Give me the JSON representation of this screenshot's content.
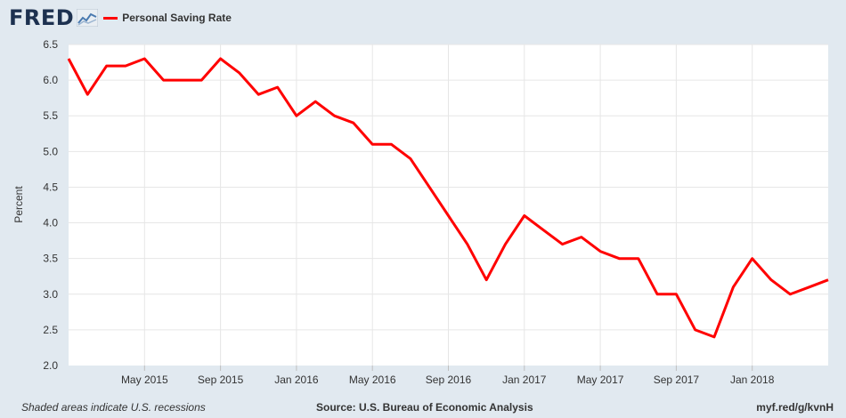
{
  "header": {
    "logo_text": "FRED",
    "logo_icon": "trend-line-icon"
  },
  "chart_data": {
    "type": "line",
    "title": "",
    "xlabel": "",
    "ylabel": "Percent",
    "ylim": [
      2.0,
      6.5
    ],
    "yticks": [
      "2.0",
      "2.5",
      "3.0",
      "3.5",
      "4.0",
      "4.5",
      "5.0",
      "5.5",
      "6.0",
      "6.5"
    ],
    "xticks": [
      "May 2015",
      "Sep 2015",
      "Jan 2016",
      "May 2016",
      "Sep 2016",
      "Jan 2017",
      "May 2017",
      "Sep 2017",
      "Jan 2018"
    ],
    "grid": true,
    "legend_position": "top-left",
    "series": [
      {
        "name": "Personal Saving Rate",
        "color": "#ff0000",
        "x": [
          "2015-01",
          "2015-02",
          "2015-03",
          "2015-04",
          "2015-05",
          "2015-06",
          "2015-07",
          "2015-08",
          "2015-09",
          "2015-10",
          "2015-11",
          "2015-12",
          "2016-01",
          "2016-02",
          "2016-03",
          "2016-04",
          "2016-05",
          "2016-06",
          "2016-07",
          "2016-08",
          "2016-09",
          "2016-10",
          "2016-11",
          "2016-12",
          "2017-01",
          "2017-02",
          "2017-03",
          "2017-04",
          "2017-05",
          "2017-06",
          "2017-07",
          "2017-08",
          "2017-09",
          "2017-10",
          "2017-11",
          "2017-12",
          "2018-01",
          "2018-02",
          "2018-03",
          "2018-04",
          "2018-05"
        ],
        "values": [
          6.3,
          5.8,
          6.2,
          6.2,
          6.3,
          6.0,
          6.0,
          6.0,
          6.3,
          6.1,
          5.8,
          5.9,
          5.5,
          5.7,
          5.5,
          5.4,
          5.1,
          5.1,
          4.9,
          4.5,
          4.1,
          3.7,
          3.2,
          3.7,
          4.1,
          3.9,
          3.7,
          3.8,
          3.6,
          3.5,
          3.5,
          3.0,
          3.0,
          2.5,
          2.4,
          3.1,
          3.5,
          3.2,
          3.0,
          3.1,
          3.2
        ]
      }
    ]
  },
  "footer": {
    "recession_note": "Shaded areas indicate U.S. recessions",
    "source": "Source: U.S. Bureau of Economic Analysis",
    "short_url": "myf.red/g/kvnH"
  }
}
